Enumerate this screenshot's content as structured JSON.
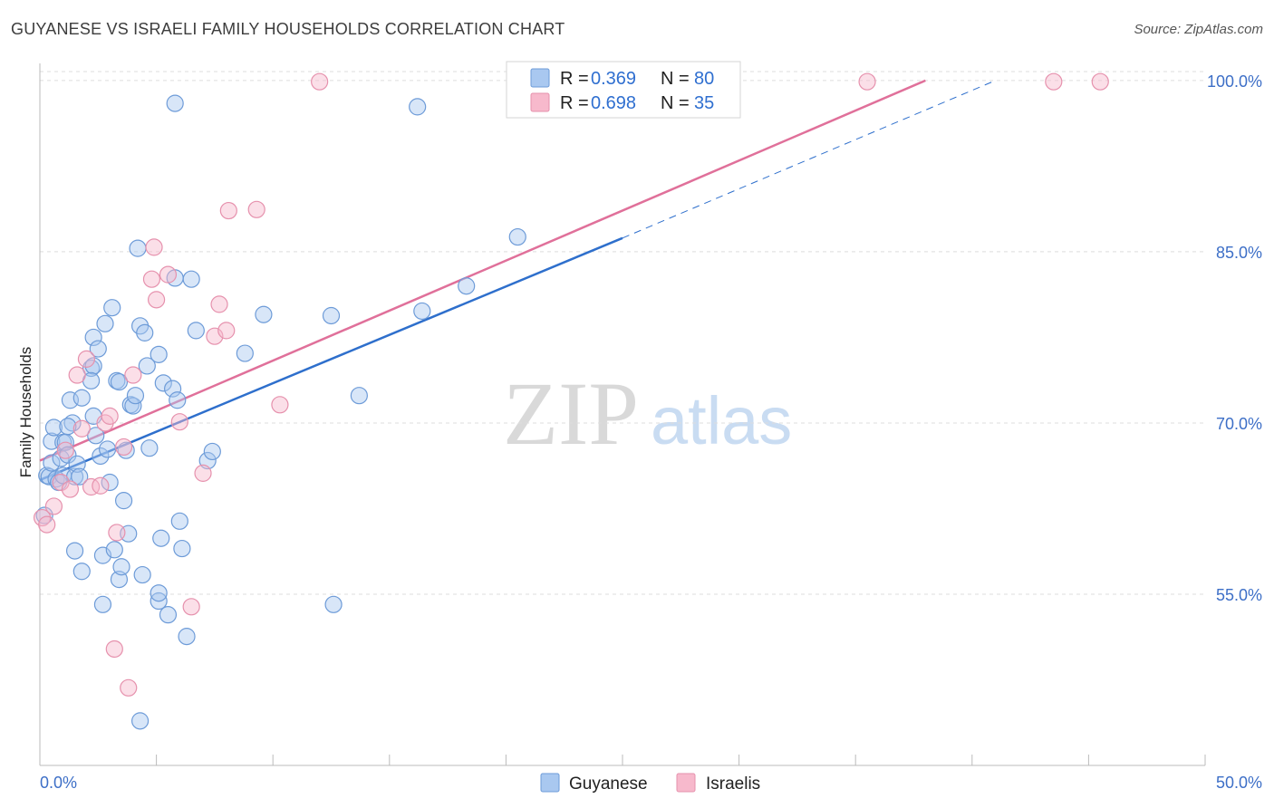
{
  "header": {
    "title": "GUYANESE VS ISRAELI FAMILY HOUSEHOLDS CORRELATION CHART",
    "source": "Source: ZipAtlas.com"
  },
  "watermark": {
    "zip": "ZIP",
    "atlas": "atlas"
  },
  "colors": {
    "guyanese_fill": "#a9c8f0",
    "guyanese_stroke": "#6d9bd8",
    "guyanese_line": "#2e6fcc",
    "israelis_fill": "#f7b9cc",
    "israelis_stroke": "#e691ad",
    "israelis_line": "#e0709a",
    "axis_label": "#3d6fc7",
    "grid": "#dddddd"
  },
  "legend": {
    "rows": [
      {
        "r_label": "R =",
        "r_value": "0.369",
        "n_label": "N =",
        "n_value": "80"
      },
      {
        "r_label": "R =",
        "r_value": "0.698",
        "n_label": "N =",
        "n_value": "35"
      }
    ]
  },
  "chart_data": {
    "type": "scatter",
    "title": "GUYANESE VS ISRAELI FAMILY HOUSEHOLDS CORRELATION CHART",
    "xlabel": "",
    "ylabel": "Family Households",
    "xlim": [
      0,
      50
    ],
    "ylim": [
      40,
      101.5
    ],
    "x_tick_labels": [
      "0.0%",
      "50.0%"
    ],
    "y_ticks": [
      55,
      70,
      85,
      100
    ],
    "y_tick_labels": [
      "55.0%",
      "70.0%",
      "85.0%",
      "100.0%"
    ],
    "series": [
      {
        "name": "Guyanese",
        "r": 0.369,
        "n": 80,
        "trend": {
          "x0": 0,
          "y0": 65.0,
          "x1": 25,
          "y1": 86.2,
          "dash_x1": 41,
          "dash_y1": 100
        },
        "points": [
          [
            0.2,
            61.9
          ],
          [
            0.3,
            65.4
          ],
          [
            0.4,
            65.3
          ],
          [
            0.5,
            66.5
          ],
          [
            0.5,
            68.4
          ],
          [
            0.6,
            69.6
          ],
          [
            0.7,
            65.1
          ],
          [
            0.8,
            64.8
          ],
          [
            0.9,
            66.9
          ],
          [
            1.0,
            68.3
          ],
          [
            1.0,
            65.4
          ],
          [
            1.1,
            68.3
          ],
          [
            1.2,
            67.2
          ],
          [
            1.3,
            72.0
          ],
          [
            1.4,
            70.0
          ],
          [
            1.5,
            65.3
          ],
          [
            1.6,
            66.4
          ],
          [
            1.7,
            65.3
          ],
          [
            1.8,
            72.2
          ],
          [
            1.8,
            57.0
          ],
          [
            1.5,
            58.8
          ],
          [
            2.2,
            74.8
          ],
          [
            2.3,
            75.0
          ],
          [
            2.3,
            70.6
          ],
          [
            2.4,
            68.9
          ],
          [
            2.3,
            77.5
          ],
          [
            2.5,
            76.5
          ],
          [
            2.6,
            67.1
          ],
          [
            2.7,
            58.4
          ],
          [
            2.7,
            54.1
          ],
          [
            2.8,
            78.7
          ],
          [
            2.9,
            67.7
          ],
          [
            3.0,
            64.8
          ],
          [
            3.1,
            80.1
          ],
          [
            3.2,
            58.9
          ],
          [
            3.3,
            73.7
          ],
          [
            3.4,
            73.6
          ],
          [
            3.4,
            56.3
          ],
          [
            3.5,
            57.4
          ],
          [
            3.6,
            63.2
          ],
          [
            3.7,
            67.6
          ],
          [
            3.8,
            60.3
          ],
          [
            3.9,
            71.6
          ],
          [
            4.0,
            71.5
          ],
          [
            4.1,
            72.4
          ],
          [
            4.2,
            85.3
          ],
          [
            4.3,
            78.5
          ],
          [
            4.4,
            56.7
          ],
          [
            4.5,
            77.9
          ],
          [
            4.6,
            75.0
          ],
          [
            4.7,
            67.8
          ],
          [
            5.1,
            76.0
          ],
          [
            5.2,
            59.9
          ],
          [
            5.3,
            73.5
          ],
          [
            5.5,
            53.2
          ],
          [
            5.7,
            73.0
          ],
          [
            5.8,
            82.7
          ],
          [
            5.9,
            72.0
          ],
          [
            6.0,
            61.4
          ],
          [
            6.1,
            59.0
          ],
          [
            6.3,
            51.3
          ],
          [
            6.5,
            82.6
          ],
          [
            6.7,
            78.1
          ],
          [
            7.2,
            66.7
          ],
          [
            7.4,
            67.5
          ],
          [
            8.8,
            76.1
          ],
          [
            9.6,
            79.5
          ],
          [
            12.5,
            79.4
          ],
          [
            12.6,
            54.1
          ],
          [
            13.7,
            72.4
          ],
          [
            16.4,
            79.8
          ],
          [
            18.3,
            82.0
          ],
          [
            20.5,
            86.3
          ],
          [
            5.8,
            98.0
          ],
          [
            16.2,
            97.7
          ],
          [
            4.3,
            43.9
          ],
          [
            5.1,
            54.4
          ],
          [
            5.1,
            55.1
          ],
          [
            2.2,
            73.7
          ],
          [
            1.2,
            69.7
          ]
        ]
      },
      {
        "name": "Israelis",
        "r": 0.698,
        "n": 35,
        "trend": {
          "x0": 0,
          "y0": 66.7,
          "x1": 38,
          "y1": 100
        },
        "points": [
          [
            0.1,
            61.7
          ],
          [
            0.3,
            61.1
          ],
          [
            0.6,
            62.7
          ],
          [
            0.9,
            64.8
          ],
          [
            1.1,
            67.6
          ],
          [
            1.3,
            64.2
          ],
          [
            1.6,
            74.2
          ],
          [
            1.8,
            69.5
          ],
          [
            2.0,
            75.6
          ],
          [
            2.2,
            64.4
          ],
          [
            2.6,
            64.5
          ],
          [
            2.8,
            70.0
          ],
          [
            3.0,
            70.6
          ],
          [
            3.3,
            60.4
          ],
          [
            3.6,
            67.9
          ],
          [
            4.0,
            74.2
          ],
          [
            4.8,
            82.6
          ],
          [
            4.9,
            85.4
          ],
          [
            5.0,
            80.8
          ],
          [
            5.5,
            83.0
          ],
          [
            6.0,
            70.1
          ],
          [
            6.5,
            53.9
          ],
          [
            7.0,
            65.6
          ],
          [
            7.5,
            77.6
          ],
          [
            7.7,
            80.4
          ],
          [
            8.0,
            78.1
          ],
          [
            8.1,
            88.6
          ],
          [
            9.3,
            88.7
          ],
          [
            10.3,
            71.6
          ],
          [
            12.0,
            99.9
          ],
          [
            35.5,
            99.9
          ],
          [
            43.5,
            99.9
          ],
          [
            45.5,
            99.9
          ],
          [
            3.2,
            50.2
          ],
          [
            3.8,
            46.8
          ]
        ]
      }
    ],
    "bottom_legend": [
      "Guyanese",
      "Israelis"
    ]
  }
}
